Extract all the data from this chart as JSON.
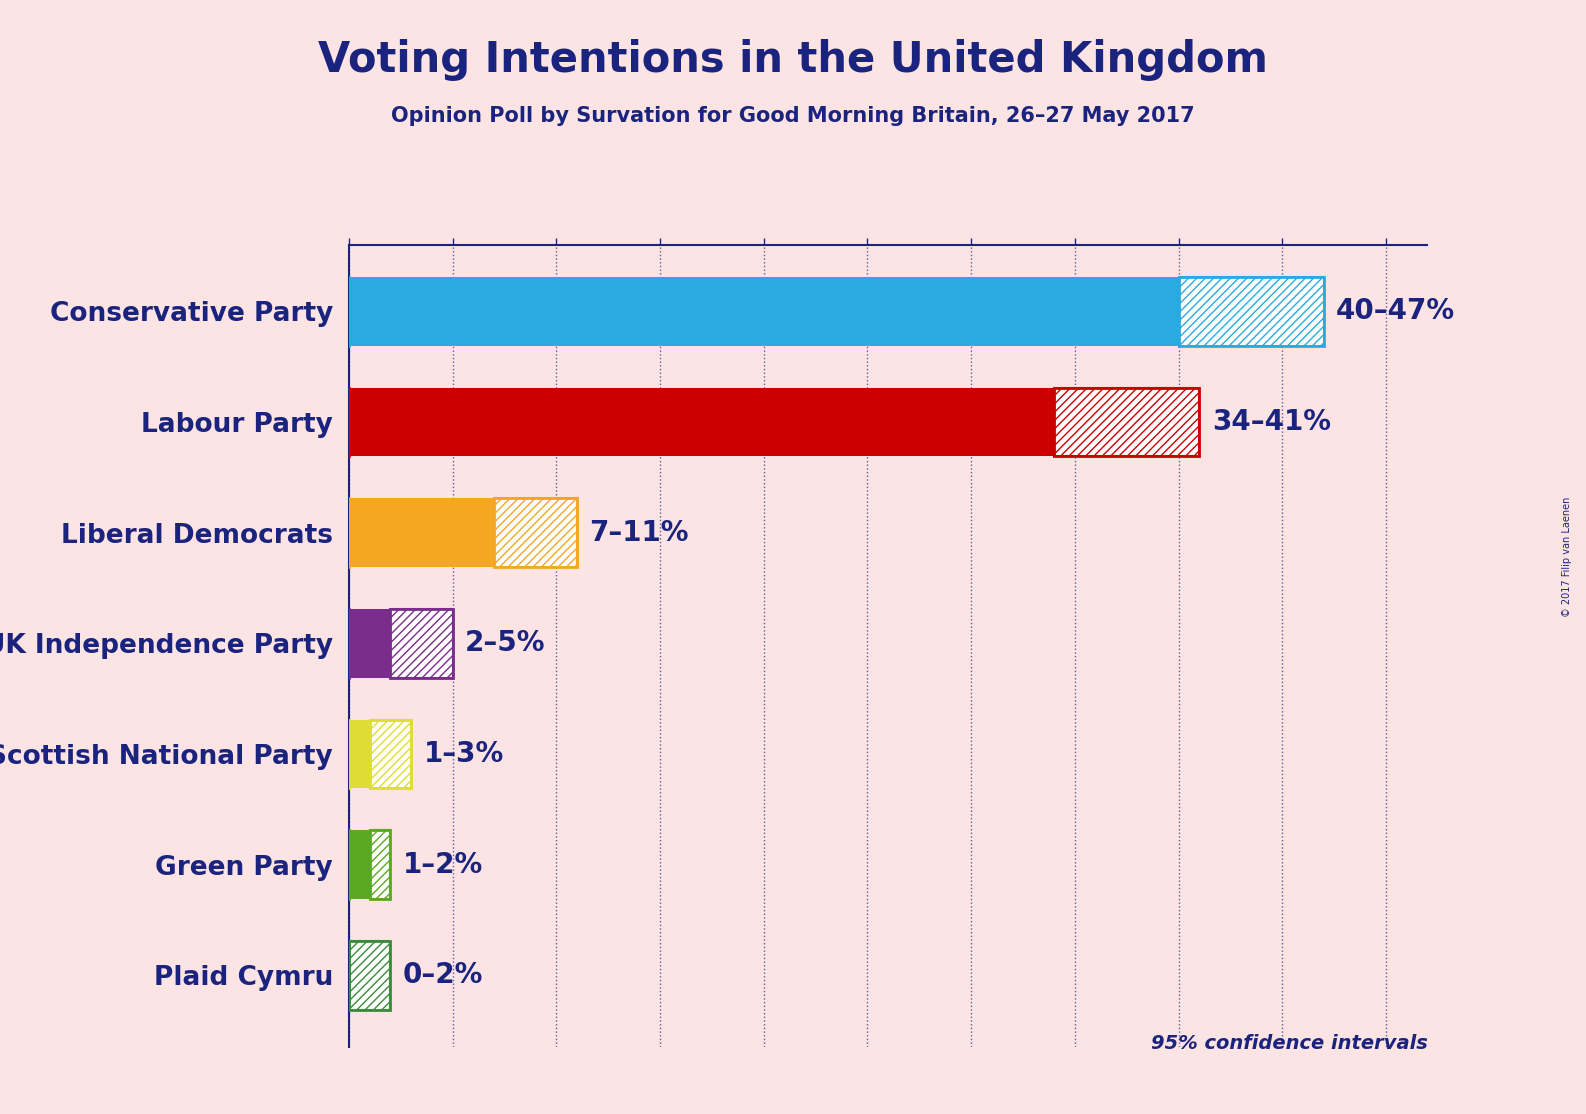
{
  "title": "Voting Intentions in the United Kingdom",
  "subtitle": "Opinion Poll by Survation for Good Morning Britain, 26–27 May 2017",
  "copyright": "© 2017 Filip van Laenen",
  "background_color": "#fce4e4",
  "title_color": "#1a237e",
  "subtitle_color": "#1a237e",
  "bar_label_color": "#1a237e",
  "parties": [
    "Conservative Party",
    "Labour Party",
    "Liberal Democrats",
    "UK Independence Party",
    "Scottish National Party",
    "Green Party",
    "Plaid Cymru"
  ],
  "low_values": [
    40,
    34,
    7,
    2,
    1,
    1,
    0
  ],
  "high_values": [
    47,
    41,
    11,
    5,
    3,
    2,
    2
  ],
  "labels": [
    "40–47%",
    "34–41%",
    "7–11%",
    "2–5%",
    "1–3%",
    "1–2%",
    "0–2%"
  ],
  "solid_colors": [
    "#29ABE2",
    "#CC0000",
    "#F5A623",
    "#7B2D8B",
    "#DDDD33",
    "#5BA822",
    "#3B8C3B"
  ],
  "hatch_face_colors": [
    "#ffffff",
    "#ffffff",
    "#ffffff",
    "#ffffff",
    "#ffffff",
    "#ffffff",
    "#ffffff"
  ],
  "xlim": [
    0,
    52
  ],
  "title_fontsize": 30,
  "subtitle_fontsize": 15,
  "bar_label_fontsize": 20,
  "party_label_fontsize": 19,
  "confidence_label": "95% confidence intervals",
  "confidence_color": "#1a237e",
  "axis_color": "#1a237e",
  "grid_color": "#1a237e",
  "tick_color": "#1a237e"
}
